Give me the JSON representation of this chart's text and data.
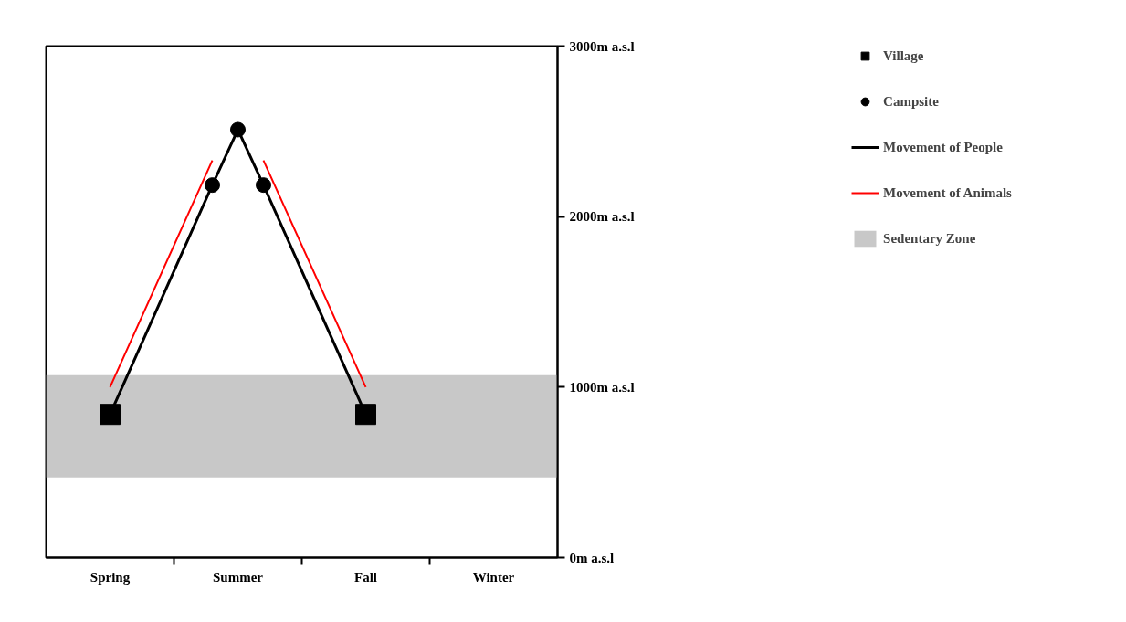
{
  "chart_data": {
    "type": "line",
    "categories": [
      null,
      null,
      "Spring",
      null,
      null,
      null,
      null,
      "Summer",
      null,
      null,
      null,
      null,
      "Fall",
      null,
      null,
      null,
      null,
      "Winter",
      null,
      null
    ],
    "ylim": [
      0,
      3000
    ],
    "yticks": [
      {
        "value": 0,
        "label": "0m a.s.l"
      },
      {
        "value": 1000,
        "label": "1000m a.s.l"
      },
      {
        "value": 2000,
        "label": "2000m a.s.l"
      },
      {
        "value": 3000,
        "label": "3000m a.s.l"
      }
    ],
    "series": [
      {
        "name": "Village",
        "type": "scatter",
        "marker": "square",
        "color": "#000000",
        "values": [
          null,
          null,
          840,
          null,
          null,
          null,
          null,
          null,
          null,
          null,
          null,
          null,
          840,
          null,
          null,
          null,
          null,
          null,
          null,
          null
        ]
      },
      {
        "name": "Campsite",
        "type": "scatter",
        "marker": "circle",
        "color": "#000000",
        "values": [
          null,
          null,
          null,
          null,
          null,
          null,
          2185,
          2510,
          2185,
          null,
          null,
          null,
          null,
          null,
          null,
          null,
          null,
          null,
          null,
          null
        ]
      },
      {
        "name": "Movement of People",
        "marker": "none",
        "color": "#000000",
        "values": [
          null,
          null,
          840,
          null,
          null,
          null,
          2185,
          2510,
          2185,
          null,
          null,
          null,
          840,
          null,
          null,
          null,
          null,
          null,
          null,
          null
        ]
      },
      {
        "name": "Movement of Animals",
        "type": "line",
        "marker": "none",
        "color": "#ff0000",
        "values": [
          null,
          null,
          1000,
          null,
          null,
          null,
          2330,
          null,
          2330,
          null,
          null,
          null,
          1000,
          null,
          null,
          null,
          null,
          null,
          null,
          null
        ]
      }
    ],
    "bands": [
      {
        "axis": "y",
        "from": 470,
        "to": 1070,
        "label": "Sedentary Zone",
        "color": "#c8c8c8"
      }
    ],
    "grid": false,
    "legend": "right"
  }
}
